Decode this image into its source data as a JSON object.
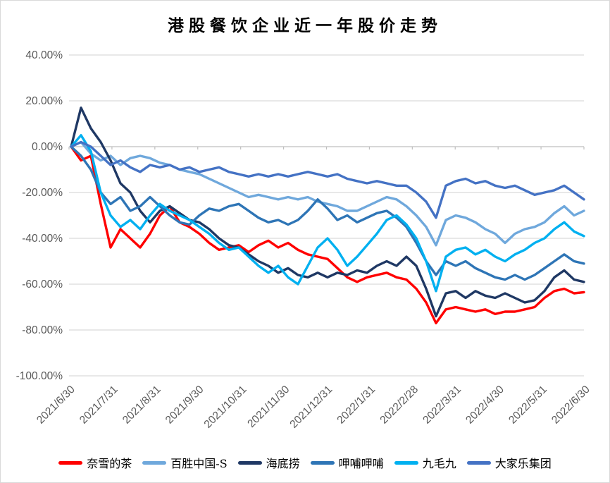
{
  "title": "港股餐饮企业近一年股价走势",
  "colors": {
    "background": "#FFFFFF",
    "border": "#D9D9D9",
    "gridline": "#D9D9D9",
    "axis_line": "#BFBFBF",
    "tick_label": "#595959",
    "title_text": "#000000"
  },
  "chart_data": {
    "type": "line",
    "title": "港股餐饮企业近一年股价走势",
    "ylabel_format": "percent",
    "ylim": [
      -100,
      40
    ],
    "ytick_step": 20,
    "yticks": [
      "40.00%",
      "20.00%",
      "0.00%",
      "-20.00%",
      "-40.00%",
      "-60.00%",
      "-80.00%",
      "-100.00%"
    ],
    "ytick_values": [
      40,
      20,
      0,
      -20,
      -40,
      -60,
      -80,
      -100
    ],
    "grid": true,
    "legend_position": "bottom",
    "x_labels": [
      "2021/6/30",
      "2021/7/31",
      "2021/8/31",
      "2021/9/30",
      "2021/10/31",
      "2021/11/30",
      "2021/12/31",
      "2022/1/31",
      "2022/2/28",
      "2022/3/31",
      "2022/4/30",
      "2022/5/31",
      "2022/6/30"
    ],
    "sampling": "weekly samples (53 points per series) from 2021/6/30 to 2022/6/30, values in %",
    "series": [
      {
        "name": "奈雪的茶",
        "color": "#FF0000",
        "values": [
          0,
          -6,
          -4,
          -25,
          -44,
          -36,
          -40,
          -44,
          -38,
          -30,
          -26,
          -33,
          -35,
          -38,
          -42,
          -45,
          -44,
          -43,
          -46,
          -43,
          -41,
          -44,
          -42,
          -45,
          -47,
          -48,
          -49,
          -53,
          -57,
          -59,
          -57,
          -56,
          -55,
          -57,
          -58,
          -62,
          -68,
          -77,
          -71,
          -70,
          -71,
          -72,
          -71,
          -73,
          -72,
          -72,
          -71,
          -70,
          -66,
          -63,
          -62,
          -64,
          -63.5
        ]
      },
      {
        "name": "百胜中国-S",
        "color": "#6FA8DC",
        "values": [
          0,
          2,
          -3,
          -6,
          -4,
          -8,
          -5,
          -4,
          -5,
          -7,
          -8,
          -10,
          -11,
          -12,
          -14,
          -16,
          -18,
          -20,
          -22,
          -21,
          -22,
          -23,
          -22,
          -23,
          -22,
          -24,
          -25,
          -26,
          -28,
          -28,
          -26,
          -24,
          -22,
          -23,
          -26,
          -30,
          -35,
          -43,
          -32,
          -30,
          -31,
          -33,
          -36,
          -38,
          -42,
          -38,
          -36,
          -35,
          -33,
          -29,
          -26,
          -30,
          -28
        ]
      },
      {
        "name": "海底捞",
        "color": "#1F3864",
        "values": [
          0,
          17,
          8,
          2,
          -6,
          -16,
          -20,
          -28,
          -33,
          -28,
          -26,
          -29,
          -32,
          -33,
          -36,
          -40,
          -43,
          -44,
          -47,
          -50,
          -52,
          -55,
          -53,
          -56,
          -57,
          -55,
          -57,
          -55,
          -56,
          -54,
          -55,
          -52,
          -50,
          -52,
          -48,
          -52,
          -62,
          -74,
          -64,
          -63,
          -66,
          -63,
          -65,
          -66,
          -64,
          -66,
          -68,
          -67,
          -63,
          -57,
          -54,
          -58,
          -59
        ]
      },
      {
        "name": "呷哺呷哺",
        "color": "#2E75B6",
        "values": [
          0,
          -4,
          -10,
          -20,
          -25,
          -22,
          -28,
          -26,
          -22,
          -26,
          -30,
          -33,
          -34,
          -30,
          -27,
          -28,
          -26,
          -25,
          -28,
          -31,
          -33,
          -32,
          -34,
          -32,
          -28,
          -23,
          -27,
          -32,
          -30,
          -33,
          -31,
          -29,
          -28,
          -31,
          -35,
          -42,
          -50,
          -56,
          -50,
          -52,
          -50,
          -53,
          -55,
          -57,
          -58,
          -56,
          -58,
          -56,
          -53,
          -50,
          -47,
          -50,
          -51
        ]
      },
      {
        "name": "九毛九",
        "color": "#00B0F0",
        "values": [
          0,
          5,
          -2,
          -20,
          -30,
          -35,
          -32,
          -36,
          -30,
          -25,
          -28,
          -30,
          -32,
          -35,
          -38,
          -42,
          -45,
          -44,
          -48,
          -52,
          -55,
          -52,
          -57,
          -60,
          -52,
          -44,
          -40,
          -45,
          -52,
          -48,
          -43,
          -38,
          -32,
          -30,
          -34,
          -40,
          -50,
          -63,
          -48,
          -45,
          -44,
          -47,
          -45,
          -48,
          -50,
          -47,
          -45,
          -42,
          -40,
          -36,
          -33,
          -37,
          -39
        ]
      },
      {
        "name": "大家乐集团",
        "color": "#4472C4",
        "values": [
          0,
          2,
          0,
          -4,
          -8,
          -6,
          -9,
          -11,
          -8,
          -9,
          -8,
          -10,
          -9,
          -11,
          -10,
          -9,
          -11,
          -12,
          -13,
          -12,
          -13,
          -12,
          -13,
          -12,
          -11,
          -12,
          -13,
          -12,
          -14,
          -15,
          -16,
          -15,
          -16,
          -17,
          -17,
          -20,
          -24,
          -31,
          -17,
          -15,
          -14,
          -16,
          -15,
          -17,
          -18,
          -17,
          -19,
          -21,
          -20,
          -19,
          -17,
          -20,
          -23
        ]
      }
    ]
  }
}
